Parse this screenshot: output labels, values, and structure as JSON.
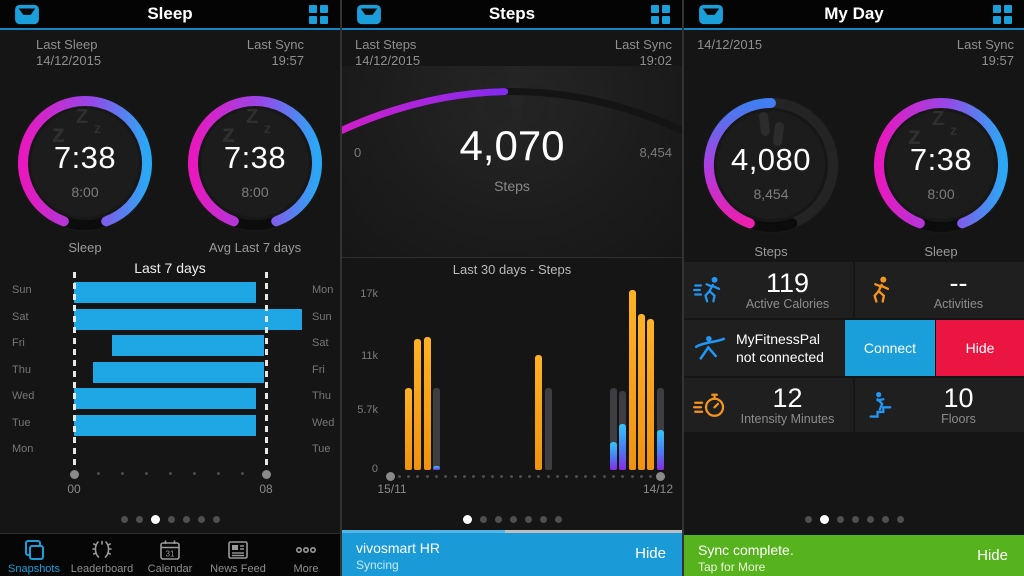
{
  "colors": {
    "accent_blue": "#1a9fdb",
    "bar_blue": "#1fa6e4",
    "bar_orange": "#f59a1e",
    "banner_green": "#56b21d",
    "hide_red": "#ea1540",
    "ring_magenta": "#e818be",
    "ring_blue": "#2ba8f5"
  },
  "panels": {
    "sleep": {
      "title": "Sleep",
      "meta_left_1": "Last Sleep",
      "meta_left_2": "14/12/2015",
      "meta_right_1": "Last Sync",
      "meta_right_2": "19:57",
      "gauges": [
        {
          "value": "7:38",
          "goal": "8:00",
          "caption": "Sleep"
        },
        {
          "value": "7:38",
          "goal": "8:00",
          "caption": "Avg Last 7 days"
        }
      ],
      "dots": {
        "count": 7,
        "active": 2
      },
      "nav": [
        {
          "label": "Snapshots",
          "active": true
        },
        {
          "label": "Leaderboard",
          "active": false
        },
        {
          "label": "Calendar",
          "active": false
        },
        {
          "label": "News Feed",
          "active": false
        },
        {
          "label": "More",
          "active": false
        }
      ]
    },
    "steps": {
      "title": "Steps",
      "meta_left_1": "Last Steps",
      "meta_left_2": "14/12/2015",
      "meta_right_1": "Last Sync",
      "meta_right_2": "19:02",
      "gauge": {
        "value": "4,070",
        "caption": "Steps",
        "min": "0",
        "max": "8,454"
      },
      "dots": {
        "count": 7,
        "active": 0
      },
      "banner": {
        "title": "vivosmart HR",
        "subtitle": "Syncing",
        "action": "Hide",
        "progress_pct": 48
      }
    },
    "myday": {
      "title": "My Day",
      "meta_left_2": "14/12/2015",
      "meta_right_1": "Last Sync",
      "meta_right_2": "19:57",
      "gauges": [
        {
          "value": "4,080",
          "goal": "8,454",
          "caption": "Steps"
        },
        {
          "value": "7:38",
          "goal": "8:00",
          "caption": "Sleep"
        }
      ],
      "tiles": [
        {
          "value": "119",
          "caption": "Active Calories"
        },
        {
          "value": "--",
          "caption": "Activities"
        },
        {
          "text": "MyFitnessPal not connected"
        },
        {
          "button": "Connect"
        },
        {
          "button": "Hide"
        },
        {
          "value": "12",
          "caption": "Intensity Minutes"
        },
        {
          "value": "10",
          "caption": "Floors"
        }
      ],
      "dots": {
        "count": 7,
        "active": 1
      },
      "banner": {
        "title": "Sync complete.",
        "subtitle": "Tap for More",
        "action": "Hide"
      }
    }
  },
  "chart_data": [
    {
      "type": "bar",
      "orientation": "horizontal",
      "title": "Last 7 days",
      "left_labels": [
        "Sun",
        "Sat",
        "Fri",
        "Thu",
        "Wed",
        "Tue",
        "Mon"
      ],
      "right_labels": [
        "Mon",
        "Sun",
        "Sat",
        "Fri",
        "Thu",
        "Wed",
        "Tue"
      ],
      "xlim": [
        0,
        8
      ],
      "x_ticks": [
        "00",
        "08"
      ],
      "unit": "hours",
      "bars": [
        {
          "row": 0,
          "start": 0,
          "end": 7.6
        },
        {
          "row": 1,
          "start": 0,
          "end": 9.5
        },
        {
          "row": 2,
          "start": 1.6,
          "end": 7.9
        },
        {
          "row": 3,
          "start": 0.8,
          "end": 7.9
        },
        {
          "row": 4,
          "start": 0,
          "end": 7.6
        },
        {
          "row": 5,
          "start": 0,
          "end": 7.6
        }
      ],
      "bar_color": "#1fa6e4"
    },
    {
      "type": "bar",
      "title": "Last 30 days - Steps",
      "y_ticks": [
        {
          "label": "17k",
          "value": 17000
        },
        {
          "label": "11k",
          "value": 11000
        },
        {
          "label": "5.7k",
          "value": 5700
        },
        {
          "label": "0",
          "value": 0
        }
      ],
      "ymax": 17500,
      "days": 30,
      "x_ticks": [
        "15/11",
        "14/12"
      ],
      "bars": [
        {
          "day": 2,
          "value": 8000,
          "kind": "steps"
        },
        {
          "day": 3,
          "value": 12700,
          "kind": "steps"
        },
        {
          "day": 4,
          "value": 12900,
          "kind": "steps"
        },
        {
          "day": 5,
          "value": 8000,
          "kind": "goal"
        },
        {
          "day": 5,
          "value": 400,
          "kind": "other"
        },
        {
          "day": 16,
          "value": 11200,
          "kind": "steps"
        },
        {
          "day": 17,
          "value": 8000,
          "kind": "goal"
        },
        {
          "day": 24,
          "value": 8000,
          "kind": "goal"
        },
        {
          "day": 24,
          "value": 2700,
          "kind": "other"
        },
        {
          "day": 25,
          "value": 7700,
          "kind": "goal"
        },
        {
          "day": 25,
          "value": 4500,
          "kind": "other"
        },
        {
          "day": 26,
          "value": 17500,
          "kind": "steps"
        },
        {
          "day": 27,
          "value": 15200,
          "kind": "steps"
        },
        {
          "day": 28,
          "value": 14700,
          "kind": "steps"
        },
        {
          "day": 29,
          "value": 8000,
          "kind": "goal"
        },
        {
          "day": 29,
          "value": 3900,
          "kind": "other"
        }
      ],
      "colors": {
        "steps": "#f59a1e",
        "goal": "#3e3e42",
        "other_top": "#35c6f7",
        "other_bottom": "#8a2be2"
      }
    }
  ]
}
